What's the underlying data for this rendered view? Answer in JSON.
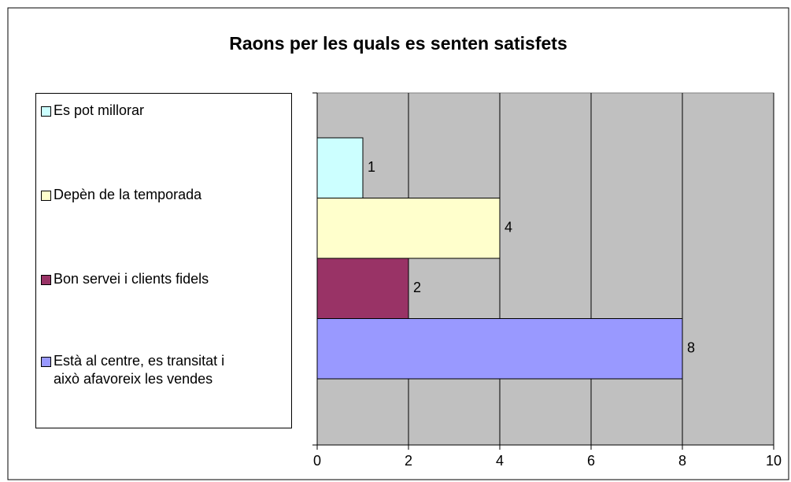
{
  "chart_data": {
    "type": "bar",
    "orientation": "horizontal",
    "title": "Raons per les quals es senten satisfets",
    "categories": [
      null
    ],
    "series": [
      {
        "name": "Es pot millorar",
        "color": "#ccffff",
        "values": [
          1
        ]
      },
      {
        "name": "Depèn de la temporada",
        "color": "#ffffcc",
        "values": [
          4
        ]
      },
      {
        "name": "Bon servei i clients fidels",
        "color": "#993366",
        "values": [
          2
        ]
      },
      {
        "name": "Està al centre, es transitat i això afavoreix les vendes",
        "color": "#9999ff",
        "values": [
          8
        ]
      }
    ],
    "xlim": [
      0,
      10
    ],
    "xticks": [
      0,
      2,
      4,
      6,
      8,
      10
    ],
    "grid": true,
    "legend": "left"
  }
}
